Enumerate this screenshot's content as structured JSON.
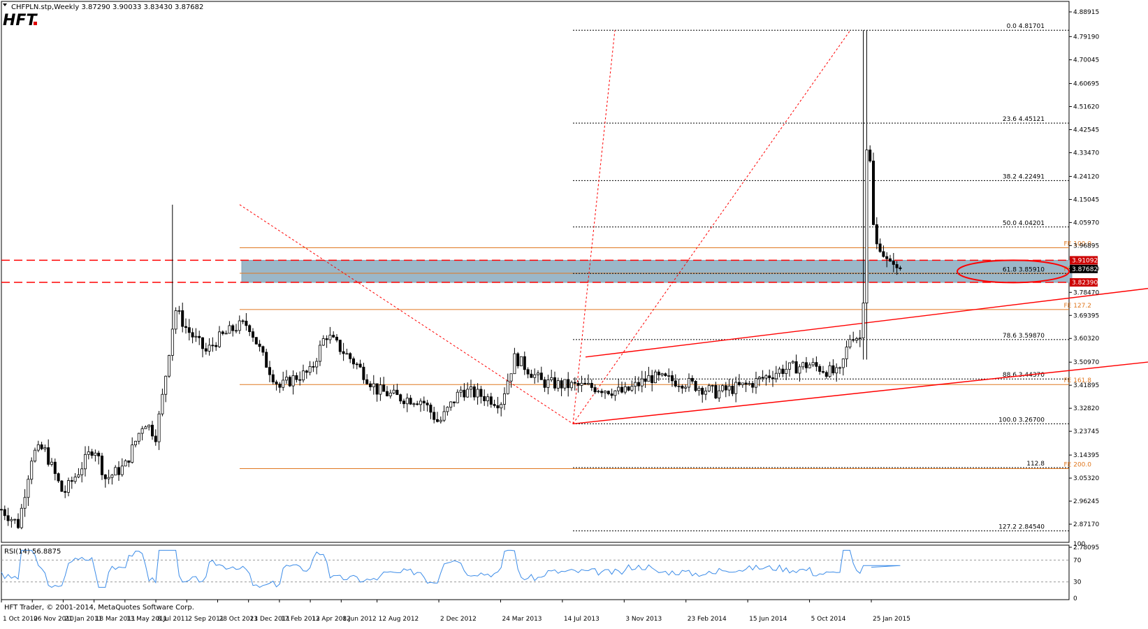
{
  "header": {
    "symbol_line": "CHFPLN.stp,Weekly  3.87290 3.90033 3.83430 3.87682",
    "logo": "HFT"
  },
  "colors": {
    "background": "#ffffff",
    "candle": "#000000",
    "fib_retrace": "#000000",
    "fib_expansion": "#e07820",
    "support_resistance": "#ff0000",
    "zone_fill": "#9bb7c8",
    "rsi_line": "#3c8ce8",
    "price_label_bg": "#cc0000"
  },
  "chart_data": [
    {
      "type": "candlestick",
      "symbol": "CHFPLN",
      "timeframe": "Weekly",
      "last_ohlc": {
        "open": 3.8729,
        "high": 3.90033,
        "low": 3.8343,
        "close": 3.87682
      },
      "ylim": [
        2.78095,
        4.88915
      ],
      "y_ticks": [
        "4.88915",
        "4.79190",
        "4.70045",
        "4.60695",
        "4.51620",
        "4.42545",
        "4.33470",
        "4.24120",
        "4.15045",
        "4.05970",
        "3.96895",
        "3.87820",
        "3.78470",
        "3.69395",
        "3.60320",
        "3.50970",
        "3.41895",
        "3.32820",
        "3.23745",
        "3.14395",
        "3.05320",
        "2.96245",
        "2.87170",
        "2.78095"
      ],
      "x_ticks": [
        "1 Oct 2010",
        "26 Nov 2010",
        "21 Jan 2011",
        "18 Mar 2011",
        "13 May 2011",
        "8 Jul 2011",
        "2 Sep 2011",
        "28 Oct 2011",
        "23 Dec 2011",
        "17 Feb 2012",
        "13 Apr 2012",
        "8 Jun 2012",
        "12 Aug 2012",
        "2 Dec 2012",
        "24 Mar 2013",
        "14 Jul 2013",
        "3 Nov 2013",
        "23 Feb 2014",
        "15 Jun 2014",
        "5 Oct 2014",
        "25 Jan 2015"
      ],
      "price_path": [
        {
          "date": "2010-10-01",
          "close": 2.93
        },
        {
          "date": "2010-11-01",
          "close": 2.87
        },
        {
          "date": "2010-11-26",
          "close": 3.15
        },
        {
          "date": "2010-12-17",
          "close": 3.17
        },
        {
          "date": "2011-01-21",
          "close": 2.99
        },
        {
          "date": "2011-02-18",
          "close": 3.08
        },
        {
          "date": "2011-03-18",
          "close": 3.18
        },
        {
          "date": "2011-04-08",
          "close": 3.05
        },
        {
          "date": "2011-05-13",
          "close": 3.1
        },
        {
          "date": "2011-06-17",
          "close": 3.28
        },
        {
          "date": "2011-07-08",
          "close": 3.22
        },
        {
          "date": "2011-07-22",
          "close": 3.4
        },
        {
          "date": "2011-08-05",
          "close": 3.62
        },
        {
          "date": "2011-08-12",
          "close": 3.72
        },
        {
          "date": "2011-09-02",
          "close": 3.64
        },
        {
          "date": "2011-10-07",
          "close": 3.55
        },
        {
          "date": "2011-10-28",
          "close": 3.6
        },
        {
          "date": "2011-12-02",
          "close": 3.65
        },
        {
          "date": "2011-12-23",
          "close": 3.66
        },
        {
          "date": "2012-01-20",
          "close": 3.52
        },
        {
          "date": "2012-02-17",
          "close": 3.41
        },
        {
          "date": "2012-03-16",
          "close": 3.45
        },
        {
          "date": "2012-04-13",
          "close": 3.47
        },
        {
          "date": "2012-05-11",
          "close": 3.62
        },
        {
          "date": "2012-06-08",
          "close": 3.56
        },
        {
          "date": "2012-07-06",
          "close": 3.5
        },
        {
          "date": "2012-08-12",
          "close": 3.4
        },
        {
          "date": "2012-09-21",
          "close": 3.37
        },
        {
          "date": "2012-11-02",
          "close": 3.36
        },
        {
          "date": "2012-12-02",
          "close": 3.27
        },
        {
          "date": "2013-01-11",
          "close": 3.4
        },
        {
          "date": "2013-02-15",
          "close": 3.38
        },
        {
          "date": "2013-03-24",
          "close": 3.35
        },
        {
          "date": "2013-04-19",
          "close": 3.53
        },
        {
          "date": "2013-06-07",
          "close": 3.43
        },
        {
          "date": "2013-07-14",
          "close": 3.42
        },
        {
          "date": "2013-09-13",
          "close": 3.41
        },
        {
          "date": "2013-11-03",
          "close": 3.39
        },
        {
          "date": "2013-12-20",
          "close": 3.45
        },
        {
          "date": "2014-02-23",
          "close": 3.43
        },
        {
          "date": "2014-04-18",
          "close": 3.39
        },
        {
          "date": "2014-06-15",
          "close": 3.42
        },
        {
          "date": "2014-08-15",
          "close": 3.48
        },
        {
          "date": "2014-10-05",
          "close": 3.5
        },
        {
          "date": "2014-11-28",
          "close": 3.46
        },
        {
          "date": "2014-12-19",
          "close": 3.62
        },
        {
          "date": "2015-01-09",
          "close": 3.6
        },
        {
          "date": "2015-01-16",
          "close": 4.35
        },
        {
          "date": "2015-01-23",
          "close": 4.3
        },
        {
          "date": "2015-01-30",
          "close": 4.0
        },
        {
          "date": "2015-02-13",
          "close": 3.93
        },
        {
          "date": "2015-02-27",
          "close": 3.91
        },
        {
          "date": "2015-03-13",
          "close": 3.88
        },
        {
          "date": "2015-03-20",
          "close": 3.87682
        }
      ],
      "fibonacci_retracement": [
        {
          "label": "0.0",
          "price": "4.81701"
        },
        {
          "label": "23.6",
          "price": "4.45121"
        },
        {
          "label": "38.2",
          "price": "4.22491"
        },
        {
          "label": "50.0",
          "price": "4.04201"
        },
        {
          "label": "61.8",
          "price": "3.85910"
        },
        {
          "label": "78.6",
          "price": "3.59870"
        },
        {
          "label": "88.6",
          "price": "3.44370"
        },
        {
          "label": "100.0",
          "price": "3.26700"
        },
        {
          "label": "112.8",
          "price": ""
        },
        {
          "label": "127.2",
          "price": "2.84540"
        }
      ],
      "fibonacci_expansion": [
        {
          "label": "FE 100.0",
          "price": 3.9602
        },
        {
          "label": "FE 112.8",
          "price": 3.8598
        },
        {
          "label": "FE 127.2",
          "price": 3.7171
        },
        {
          "label": "FE 161.8",
          "price": 3.4216
        },
        {
          "label": "FE 200.0",
          "price": 3.0906
        }
      ],
      "fe_level_112_8": 3.0944,
      "support_resistance": [
        {
          "price": 3.91092,
          "label": "3.91092"
        },
        {
          "price": 3.8239,
          "label": "3.82390"
        }
      ],
      "current_price_label": "3.87682"
    },
    {
      "type": "line",
      "indicator": "RSI",
      "title": "RSI(14) 56.8875",
      "ylim": [
        0,
        100
      ],
      "y_ticks": [
        "100",
        "70",
        "30",
        "0"
      ],
      "levels": [
        70,
        30
      ],
      "last": 56.8875
    }
  ],
  "footer": {
    "copyright": "HFT Trader, © 2001-2014, MetaQuotes Software Corp."
  }
}
